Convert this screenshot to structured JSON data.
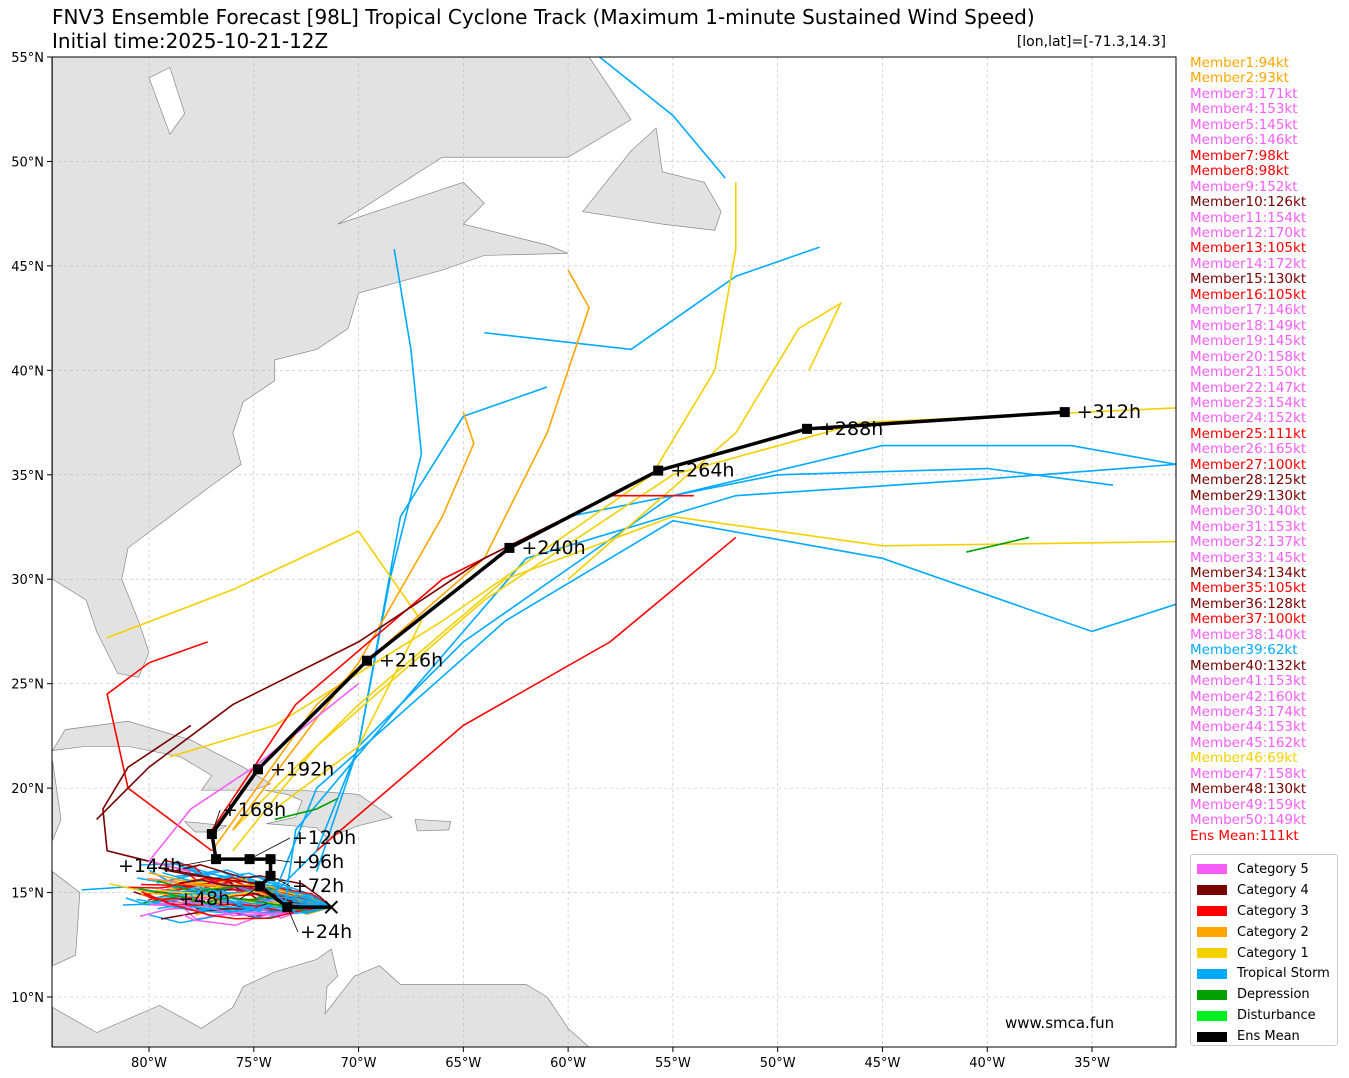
{
  "header": {
    "title": "FNV3 Ensemble Forecast [98L] Tropical Cyclone Track (Maximum 1-minute Sustained Wind Speed)",
    "subtitle": "Initial time:2025-10-21-12Z",
    "position": "[lon,lat]=[-71.3,14.3]"
  },
  "watermark": "www.smca.fun",
  "colors": {
    "cat5": "#f75ef7",
    "cat4": "#7a0000",
    "cat3": "#ff0000",
    "cat2": "#ffa500",
    "cat1": "#f5d000",
    "ts": "#00aaff",
    "td": "#00a000",
    "dist": "#00ee22",
    "mean": "#000000",
    "land": "#e2e2e2",
    "coast": "#888888"
  },
  "members": [
    {
      "label": "Member1:94kt",
      "cat": "cat2"
    },
    {
      "label": "Member2:93kt",
      "cat": "cat2"
    },
    {
      "label": "Member3:171kt",
      "cat": "cat5"
    },
    {
      "label": "Member4:153kt",
      "cat": "cat5"
    },
    {
      "label": "Member5:145kt",
      "cat": "cat5"
    },
    {
      "label": "Member6:146kt",
      "cat": "cat5"
    },
    {
      "label": "Member7:98kt",
      "cat": "cat3"
    },
    {
      "label": "Member8:98kt",
      "cat": "cat3"
    },
    {
      "label": "Member9:152kt",
      "cat": "cat5"
    },
    {
      "label": "Member10:126kt",
      "cat": "cat4"
    },
    {
      "label": "Member11:154kt",
      "cat": "cat5"
    },
    {
      "label": "Member12:170kt",
      "cat": "cat5"
    },
    {
      "label": "Member13:105kt",
      "cat": "cat3"
    },
    {
      "label": "Member14:172kt",
      "cat": "cat5"
    },
    {
      "label": "Member15:130kt",
      "cat": "cat4"
    },
    {
      "label": "Member16:105kt",
      "cat": "cat3"
    },
    {
      "label": "Member17:146kt",
      "cat": "cat5"
    },
    {
      "label": "Member18:149kt",
      "cat": "cat5"
    },
    {
      "label": "Member19:145kt",
      "cat": "cat5"
    },
    {
      "label": "Member20:158kt",
      "cat": "cat5"
    },
    {
      "label": "Member21:150kt",
      "cat": "cat5"
    },
    {
      "label": "Member22:147kt",
      "cat": "cat5"
    },
    {
      "label": "Member23:154kt",
      "cat": "cat5"
    },
    {
      "label": "Member24:152kt",
      "cat": "cat5"
    },
    {
      "label": "Member25:111kt",
      "cat": "cat3"
    },
    {
      "label": "Member26:165kt",
      "cat": "cat5"
    },
    {
      "label": "Member27:100kt",
      "cat": "cat3"
    },
    {
      "label": "Member28:125kt",
      "cat": "cat4"
    },
    {
      "label": "Member29:130kt",
      "cat": "cat4"
    },
    {
      "label": "Member30:140kt",
      "cat": "cat5"
    },
    {
      "label": "Member31:153kt",
      "cat": "cat5"
    },
    {
      "label": "Member32:137kt",
      "cat": "cat5"
    },
    {
      "label": "Member33:145kt",
      "cat": "cat5"
    },
    {
      "label": "Member34:134kt",
      "cat": "cat4"
    },
    {
      "label": "Member35:105kt",
      "cat": "cat3"
    },
    {
      "label": "Member36:128kt",
      "cat": "cat4"
    },
    {
      "label": "Member37:100kt",
      "cat": "cat3"
    },
    {
      "label": "Member38:140kt",
      "cat": "cat5"
    },
    {
      "label": "Member39:62kt",
      "cat": "ts"
    },
    {
      "label": "Member40:132kt",
      "cat": "cat4"
    },
    {
      "label": "Member41:153kt",
      "cat": "cat5"
    },
    {
      "label": "Member42:160kt",
      "cat": "cat5"
    },
    {
      "label": "Member43:174kt",
      "cat": "cat5"
    },
    {
      "label": "Member44:153kt",
      "cat": "cat5"
    },
    {
      "label": "Member45:162kt",
      "cat": "cat5"
    },
    {
      "label": "Member46:69kt",
      "cat": "cat1"
    },
    {
      "label": "Member47:158kt",
      "cat": "cat5"
    },
    {
      "label": "Member48:130kt",
      "cat": "cat4"
    },
    {
      "label": "Member49:159kt",
      "cat": "cat5"
    },
    {
      "label": "Member50:149kt",
      "cat": "cat5"
    },
    {
      "label": "Ens Mean:111kt",
      "cat": "cat3"
    }
  ],
  "legend": [
    {
      "label": "Category 5",
      "cat": "cat5"
    },
    {
      "label": "Category 4",
      "cat": "cat4"
    },
    {
      "label": "Category 3",
      "cat": "cat3"
    },
    {
      "label": "Category 2",
      "cat": "cat2"
    },
    {
      "label": "Category 1",
      "cat": "cat1"
    },
    {
      "label": "Tropical Storm",
      "cat": "ts"
    },
    {
      "label": "Depression",
      "cat": "td"
    },
    {
      "label": "Disturbance",
      "cat": "dist"
    },
    {
      "label": "Ens Mean",
      "cat": "mean"
    }
  ],
  "chart_data": {
    "type": "map-track",
    "extent": {
      "lon": [
        -84.6,
        -31.0
      ],
      "lat": [
        7.6,
        55.0
      ]
    },
    "grid": true,
    "xticks": [
      {
        "value": -80,
        "label": "80°W"
      },
      {
        "value": -75,
        "label": "75°W"
      },
      {
        "value": -70,
        "label": "70°W"
      },
      {
        "value": -65,
        "label": "65°W"
      },
      {
        "value": -60,
        "label": "60°W"
      },
      {
        "value": -55,
        "label": "55°W"
      },
      {
        "value": -50,
        "label": "50°W"
      },
      {
        "value": -45,
        "label": "45°W"
      },
      {
        "value": -40,
        "label": "40°W"
      },
      {
        "value": -35,
        "label": "35°W"
      }
    ],
    "yticks": [
      {
        "value": 10,
        "label": "10°N"
      },
      {
        "value": 15,
        "label": "15°N"
      },
      {
        "value": 20,
        "label": "20°N"
      },
      {
        "value": 25,
        "label": "25°N"
      },
      {
        "value": 30,
        "label": "30°N"
      },
      {
        "value": 35,
        "label": "35°N"
      },
      {
        "value": 40,
        "label": "40°N"
      },
      {
        "value": 45,
        "label": "45°N"
      },
      {
        "value": 50,
        "label": "50°N"
      },
      {
        "value": 55,
        "label": "55°N"
      }
    ],
    "start": {
      "lon": -71.3,
      "lat": 14.3
    },
    "ens_mean": [
      {
        "lon": -71.3,
        "lat": 14.3,
        "label": ""
      },
      {
        "lon": -73.4,
        "lat": 14.3,
        "label": "+24h"
      },
      {
        "lon": -74.7,
        "lat": 15.3,
        "label": "+48h"
      },
      {
        "lon": -74.2,
        "lat": 15.8,
        "label": "+72h"
      },
      {
        "lon": -74.2,
        "lat": 16.6,
        "label": "+96h"
      },
      {
        "lon": -75.2,
        "lat": 16.6,
        "label": "+120h"
      },
      {
        "lon": -76.8,
        "lat": 16.6,
        "label": "+144h"
      },
      {
        "lon": -77.0,
        "lat": 17.8,
        "label": "+168h"
      },
      {
        "lon": -74.8,
        "lat": 20.9,
        "label": "+192h"
      },
      {
        "lon": -69.6,
        "lat": 26.1,
        "label": "+216h"
      },
      {
        "lon": -62.8,
        "lat": 31.5,
        "label": "+240h"
      },
      {
        "lon": -55.7,
        "lat": 35.2,
        "label": "+264h"
      },
      {
        "lon": -48.6,
        "lat": 37.2,
        "label": "+288h"
      },
      {
        "lon": -36.3,
        "lat": 38.0,
        "label": "+312h"
      }
    ],
    "member_tracks": [
      {
        "cat": "ts",
        "pts": [
          [
            -71.3,
            14.3
          ],
          [
            -73,
            14
          ],
          [
            -74,
            15
          ],
          [
            -72,
            17
          ],
          [
            -70,
            22
          ],
          [
            -68.5,
            30
          ],
          [
            -67,
            36
          ],
          [
            -67.5,
            41
          ],
          [
            -68.3,
            45.8
          ]
        ]
      },
      {
        "cat": "ts",
        "pts": [
          [
            -71.3,
            14.3
          ],
          [
            -73.5,
            14.5
          ],
          [
            -73,
            18
          ],
          [
            -68,
            24
          ],
          [
            -62,
            31
          ],
          [
            -52,
            34
          ],
          [
            -40,
            34.8
          ],
          [
            -31,
            35.5
          ]
        ]
      },
      {
        "cat": "ts",
        "pts": [
          [
            -71.3,
            14.3
          ],
          [
            -74,
            15
          ],
          [
            -72,
            20
          ],
          [
            -63,
            28
          ],
          [
            -55,
            32.8
          ],
          [
            -45,
            31
          ],
          [
            -35,
            27.5
          ],
          [
            -31,
            28.8
          ]
        ]
      },
      {
        "cat": "ts",
        "pts": [
          [
            -72,
            16
          ],
          [
            -70,
            22
          ],
          [
            -65,
            27
          ],
          [
            -55,
            34
          ],
          [
            -45,
            36.4
          ],
          [
            -36,
            36.4
          ],
          [
            -31,
            35.5
          ]
        ]
      },
      {
        "cat": "ts",
        "pts": [
          [
            -70,
            22
          ],
          [
            -68,
            33
          ],
          [
            -65,
            37.8
          ],
          [
            -61,
            39.2
          ]
        ]
      },
      {
        "cat": "ts",
        "pts": [
          [
            -64,
            41.8
          ],
          [
            -57,
            41
          ],
          [
            -52,
            44.5
          ],
          [
            -48,
            45.9
          ]
        ]
      },
      {
        "cat": "ts",
        "pts": [
          [
            -58.5,
            55
          ],
          [
            -55,
            52.2
          ],
          [
            -52.5,
            49.2
          ]
        ]
      },
      {
        "cat": "ts",
        "pts": [
          [
            -60,
            33
          ],
          [
            -50,
            35
          ],
          [
            -40,
            35.3
          ],
          [
            -34,
            34.5
          ]
        ]
      },
      {
        "cat": "cat1",
        "pts": [
          [
            -76,
            17
          ],
          [
            -72,
            22
          ],
          [
            -64,
            29
          ],
          [
            -55,
            35
          ],
          [
            -46,
            37.5
          ],
          [
            -31,
            38.2
          ]
        ]
      },
      {
        "cat": "cat1",
        "pts": [
          [
            -76,
            18
          ],
          [
            -70,
            24
          ],
          [
            -63,
            30
          ],
          [
            -55,
            33
          ],
          [
            -45,
            31.6
          ],
          [
            -31,
            31.8
          ]
        ]
      },
      {
        "cat": "cat1",
        "pts": [
          [
            -79,
            21.5
          ],
          [
            -74,
            23
          ],
          [
            -66,
            28
          ],
          [
            -56,
            35
          ],
          [
            -53,
            40
          ],
          [
            -52,
            45.8
          ],
          [
            -52,
            49
          ]
        ]
      },
      {
        "cat": "cat1",
        "pts": [
          [
            -74,
            19
          ],
          [
            -70,
            22
          ],
          [
            -67,
            28
          ],
          [
            -70,
            32.3
          ],
          [
            -76,
            29.5
          ],
          [
            -82,
            27.2
          ]
        ]
      },
      {
        "cat": "cat1",
        "pts": [
          [
            -60,
            30
          ],
          [
            -52,
            37
          ],
          [
            -49,
            42
          ],
          [
            -47,
            43.2
          ],
          [
            -48.5,
            40
          ]
        ]
      },
      {
        "cat": "cat2",
        "pts": [
          [
            -77,
            17
          ],
          [
            -72,
            24
          ],
          [
            -64,
            31
          ],
          [
            -61,
            37
          ],
          [
            -59,
            43
          ],
          [
            -60,
            44.8
          ]
        ]
      },
      {
        "cat": "cat2",
        "pts": [
          [
            -76,
            18
          ],
          [
            -70,
            26
          ],
          [
            -66,
            33
          ],
          [
            -64.5,
            36.5
          ],
          [
            -65,
            38
          ]
        ]
      },
      {
        "cat": "cat3",
        "pts": [
          [
            -77,
            18
          ],
          [
            -73,
            24
          ],
          [
            -66,
            30
          ],
          [
            -58,
            34
          ],
          [
            -54,
            34
          ]
        ]
      },
      {
        "cat": "cat3",
        "pts": [
          [
            -77,
            17
          ],
          [
            -81,
            20
          ],
          [
            -82,
            24.5
          ],
          [
            -80,
            26
          ],
          [
            -77.2,
            27
          ]
        ]
      },
      {
        "cat": "cat3",
        "pts": [
          [
            -72,
            17
          ],
          [
            -65,
            23
          ],
          [
            -58,
            27
          ],
          [
            -52,
            32
          ]
        ]
      },
      {
        "cat": "cat4",
        "pts": [
          [
            -82.5,
            18.5
          ],
          [
            -80,
            21
          ],
          [
            -76,
            24
          ],
          [
            -70,
            27
          ],
          [
            -64,
            31
          ],
          [
            -58,
            34
          ]
        ]
      },
      {
        "cat": "cat4",
        "pts": [
          [
            -78,
            16
          ],
          [
            -82,
            17
          ],
          [
            -82.2,
            19
          ],
          [
            -81,
            21
          ],
          [
            -78,
            23
          ]
        ]
      },
      {
        "cat": "cat5",
        "pts": [
          [
            -78,
            16
          ],
          [
            -80,
            16.5
          ],
          [
            -78,
            19
          ],
          [
            -75,
            21
          ],
          [
            -70,
            25
          ]
        ]
      },
      {
        "cat": "td",
        "pts": [
          [
            -41,
            31.3
          ],
          [
            -38,
            32
          ]
        ]
      },
      {
        "cat": "td",
        "pts": [
          [
            -74,
            18.5
          ],
          [
            -72,
            19
          ],
          [
            -71,
            19.5
          ]
        ]
      }
    ]
  }
}
